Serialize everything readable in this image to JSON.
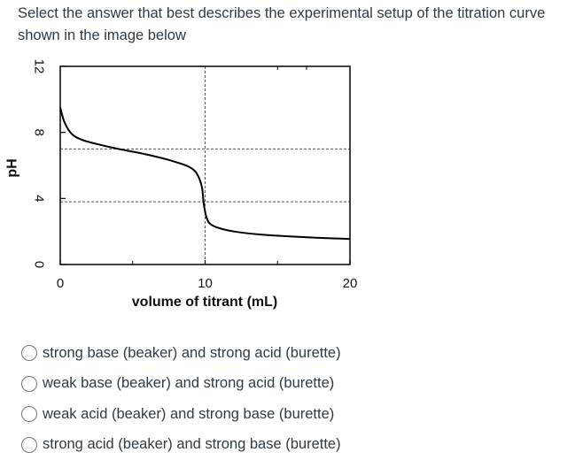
{
  "question": {
    "text": "Select the answer that best describes the experimental setup of the titration curve shown in the image below"
  },
  "chart_data": {
    "type": "line",
    "title": "",
    "xlabel": "volume of titrant (mL)",
    "ylabel": "pH",
    "xlim": [
      0,
      20
    ],
    "ylim": [
      0,
      12
    ],
    "xticks": [
      0,
      10,
      20
    ],
    "yticks": [
      0,
      4,
      8,
      12
    ],
    "xtick_labels": [
      "0",
      "10",
      "20"
    ],
    "ytick_labels": [
      "0",
      "4",
      "8",
      "12"
    ],
    "grid": false,
    "series": [
      {
        "x": [
          0,
          0.3,
          0.8,
          1.5,
          2.5,
          4,
          5.5,
          7,
          8,
          8.8,
          9.3,
          9.6,
          9.8,
          9.9,
          10,
          10.1,
          10.3,
          10.8,
          12,
          14,
          17,
          20
        ],
        "y": [
          9.5,
          8.6,
          7.9,
          7.55,
          7.3,
          7.0,
          6.75,
          6.45,
          6.2,
          5.95,
          5.65,
          5.2,
          4.6,
          3.7,
          3.2,
          2.85,
          2.5,
          2.25,
          2.0,
          1.8,
          1.65,
          1.55
        ]
      }
    ],
    "reference_lines": [
      {
        "orientation": "vertical",
        "x": 10,
        "style": "dashed"
      },
      {
        "orientation": "horizontal",
        "y": 7,
        "style": "dashed"
      },
      {
        "orientation": "horizontal",
        "y": 3.8,
        "style": "dashed"
      }
    ]
  },
  "options": [
    {
      "label": "strong base (beaker) and strong acid (burette)"
    },
    {
      "label": "weak base (beaker) and strong acid (burette)"
    },
    {
      "label": "weak acid (beaker) and strong base (burette)"
    },
    {
      "label": "strong acid (beaker) and strong base (burette)"
    }
  ]
}
